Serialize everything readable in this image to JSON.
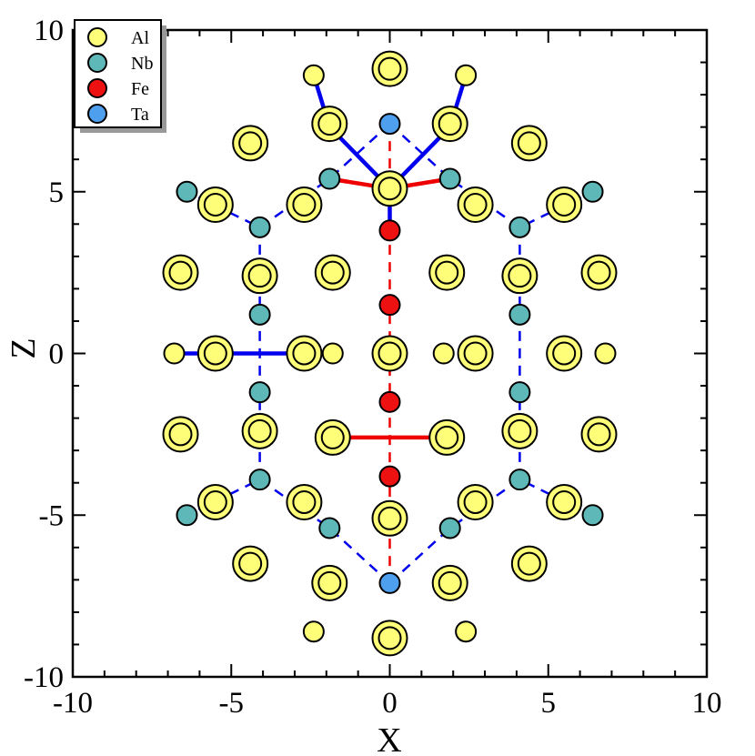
{
  "chart_data": {
    "type": "scatter",
    "title": "",
    "xlabel": "X",
    "ylabel": "Z",
    "xlim": [
      -10,
      10
    ],
    "ylim": [
      -10,
      10
    ],
    "xticks": [
      -10,
      -5,
      0,
      5,
      10
    ],
    "yticks": [
      -10,
      -5,
      0,
      5,
      10
    ],
    "xtick_labels": [
      "-10",
      "-5",
      "0",
      "5",
      "10"
    ],
    "ytick_labels": [
      "-10",
      "-5",
      "0",
      "5",
      "10"
    ],
    "grid": false,
    "legend_position": "top-left",
    "colors": {
      "Al": "#fefe78",
      "Nb": "#5fb8b8",
      "Fe": "#ee1111",
      "Ta": "#4f9fef",
      "blue_line": "#0000ee",
      "red_line": "#ee0000"
    },
    "series": [
      {
        "name": "Al",
        "marker": "circle",
        "points": [
          [
            0,
            8.8,
            2
          ],
          [
            -2.4,
            8.6,
            1
          ],
          [
            2.4,
            8.6,
            1
          ],
          [
            -1.9,
            7.1,
            2
          ],
          [
            1.9,
            7.1,
            2
          ],
          [
            -4.4,
            6.5,
            2
          ],
          [
            4.4,
            6.5,
            2
          ],
          [
            0,
            5.1,
            2
          ],
          [
            -2.7,
            4.6,
            2
          ],
          [
            2.7,
            4.6,
            2
          ],
          [
            -5.5,
            4.6,
            2
          ],
          [
            5.5,
            4.6,
            2
          ],
          [
            -6.6,
            2.5,
            2
          ],
          [
            -4.1,
            2.4,
            2
          ],
          [
            -1.8,
            2.5,
            2
          ],
          [
            1.8,
            2.5,
            2
          ],
          [
            4.1,
            2.4,
            2
          ],
          [
            6.6,
            2.5,
            2
          ],
          [
            -6.8,
            0,
            1
          ],
          [
            -5.5,
            0,
            2
          ],
          [
            -2.7,
            0,
            2
          ],
          [
            -1.8,
            0,
            1
          ],
          [
            0,
            0,
            2
          ],
          [
            1.7,
            0,
            1
          ],
          [
            2.7,
            0,
            2
          ],
          [
            5.5,
            0,
            2
          ],
          [
            6.8,
            0,
            1
          ],
          [
            -6.6,
            -2.5,
            2
          ],
          [
            -4.1,
            -2.4,
            2
          ],
          [
            -1.8,
            -2.6,
            2
          ],
          [
            1.8,
            -2.6,
            2
          ],
          [
            4.1,
            -2.4,
            2
          ],
          [
            6.6,
            -2.5,
            2
          ],
          [
            -5.5,
            -4.6,
            2
          ],
          [
            -2.7,
            -4.6,
            2
          ],
          [
            0,
            -5.1,
            2
          ],
          [
            2.7,
            -4.6,
            2
          ],
          [
            5.5,
            -4.6,
            2
          ],
          [
            -4.4,
            -6.5,
            2
          ],
          [
            -1.9,
            -7.1,
            2
          ],
          [
            1.9,
            -7.1,
            2
          ],
          [
            4.4,
            -6.5,
            2
          ],
          [
            -2.4,
            -8.6,
            1
          ],
          [
            0,
            -8.8,
            2
          ],
          [
            2.4,
            -8.6,
            1
          ]
        ]
      },
      {
        "name": "Nb",
        "marker": "circle",
        "points": [
          [
            -6.4,
            5.0
          ],
          [
            6.4,
            5.0
          ],
          [
            -4.1,
            3.9
          ],
          [
            4.1,
            3.9
          ],
          [
            -1.9,
            5.4
          ],
          [
            1.9,
            5.4
          ],
          [
            -4.1,
            1.2
          ],
          [
            4.1,
            1.2
          ],
          [
            -4.1,
            -1.2
          ],
          [
            4.1,
            -1.2
          ],
          [
            -4.1,
            -3.9
          ],
          [
            4.1,
            -3.9
          ],
          [
            -6.4,
            -5.0
          ],
          [
            6.4,
            -5.0
          ],
          [
            -1.9,
            -5.4
          ],
          [
            1.9,
            -5.4
          ]
        ]
      },
      {
        "name": "Fe",
        "marker": "circle",
        "points": [
          [
            0,
            3.8
          ],
          [
            0,
            1.5
          ],
          [
            0,
            -1.5
          ],
          [
            0,
            -3.8
          ]
        ]
      },
      {
        "name": "Ta",
        "marker": "circle",
        "points": [
          [
            0,
            7.1
          ],
          [
            0,
            -7.1
          ]
        ]
      }
    ],
    "lines": [
      {
        "color": "blue",
        "style": "dashed",
        "points": [
          [
            0,
            7.1
          ],
          [
            -1.9,
            5.4
          ],
          [
            -4.1,
            3.9
          ],
          [
            -6.4,
            5.0
          ]
        ]
      },
      {
        "color": "blue",
        "style": "dashed",
        "points": [
          [
            0,
            7.1
          ],
          [
            1.9,
            5.4
          ],
          [
            4.1,
            3.9
          ],
          [
            6.4,
            5.0
          ]
        ]
      },
      {
        "color": "blue",
        "style": "dashed",
        "points": [
          [
            -4.1,
            3.9
          ],
          [
            -4.1,
            -3.9
          ]
        ]
      },
      {
        "color": "blue",
        "style": "dashed",
        "points": [
          [
            4.1,
            3.9
          ],
          [
            4.1,
            -3.9
          ]
        ]
      },
      {
        "color": "blue",
        "style": "dashed",
        "points": [
          [
            0,
            -7.1
          ],
          [
            -1.9,
            -5.4
          ],
          [
            -4.1,
            -3.9
          ],
          [
            -6.4,
            -5.0
          ]
        ]
      },
      {
        "color": "blue",
        "style": "dashed",
        "points": [
          [
            0,
            -7.1
          ],
          [
            1.9,
            -5.4
          ],
          [
            4.1,
            -3.9
          ],
          [
            6.4,
            -5.0
          ]
        ]
      },
      {
        "color": "red",
        "style": "dashed",
        "points": [
          [
            0,
            7.1
          ],
          [
            0,
            -7.1
          ]
        ]
      },
      {
        "color": "blue",
        "style": "solid",
        "points": [
          [
            -2.4,
            8.6
          ],
          [
            -1.9,
            7.0
          ],
          [
            0,
            5.1
          ]
        ]
      },
      {
        "color": "blue",
        "style": "solid",
        "points": [
          [
            2.4,
            8.6
          ],
          [
            1.9,
            7.0
          ],
          [
            0,
            5.1
          ]
        ]
      },
      {
        "color": "blue",
        "style": "solid",
        "points": [
          [
            0,
            5.1
          ],
          [
            0,
            3.8
          ]
        ]
      },
      {
        "color": "red",
        "style": "solid",
        "points": [
          [
            -1.9,
            5.4
          ],
          [
            0,
            5.1
          ],
          [
            1.9,
            5.4
          ]
        ]
      },
      {
        "color": "blue",
        "style": "solid",
        "points": [
          [
            -6.8,
            0
          ],
          [
            -1.8,
            0
          ]
        ]
      },
      {
        "color": "red",
        "style": "solid",
        "points": [
          [
            -1.8,
            -2.6
          ],
          [
            1.8,
            -2.6
          ]
        ]
      }
    ]
  }
}
